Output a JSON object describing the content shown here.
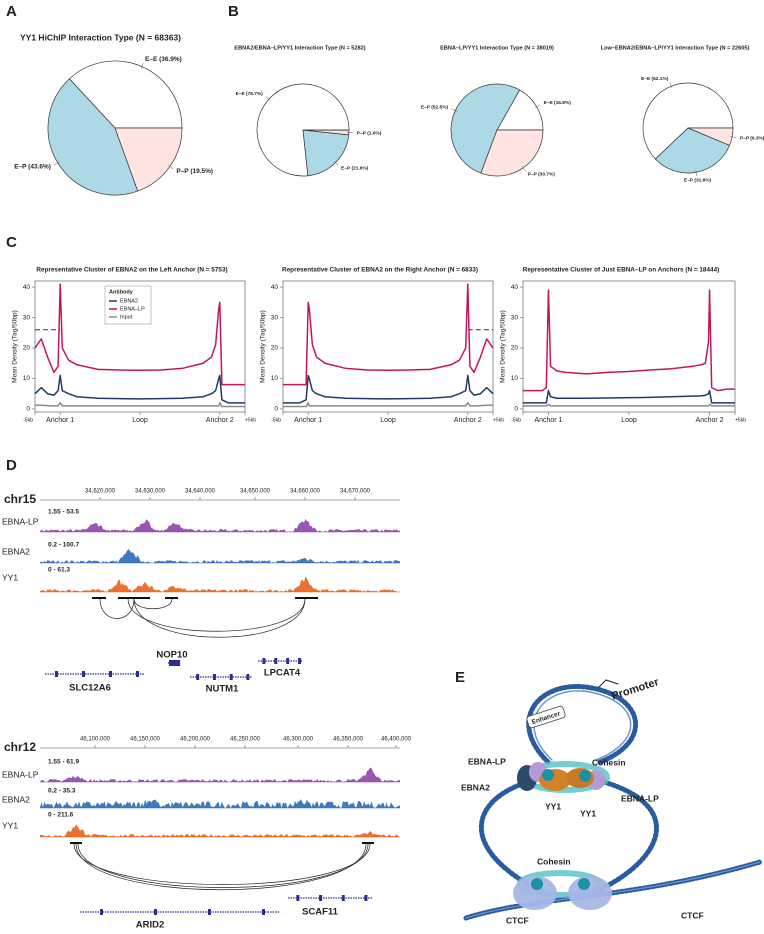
{
  "panels": [
    "A",
    "B",
    "C",
    "D",
    "E"
  ],
  "chart_data": [
    {
      "type": "pie",
      "title": "YY1 HiChIP Interaction Type (N = 68363)",
      "categories": [
        "E–E",
        "E–P",
        "P–P"
      ],
      "values": [
        36.9,
        43.6,
        19.5
      ],
      "value_labels": [
        "E–E (36.9%)",
        "E–P (43.6%)",
        "P–P (19.5%)"
      ],
      "colors": [
        "#ffffff",
        "#add8e6",
        "#ffe4e1"
      ]
    },
    {
      "type": "pie",
      "title": "EBNA2/EBNA–LP/YY1 Interaction Type (N = 5282)",
      "categories": [
        "E–E",
        "E–P",
        "P–P"
      ],
      "values": [
        76.7,
        21.6,
        1.6
      ],
      "value_labels": [
        "E–E (76.7%)",
        "E–P (21.6%)",
        "P–P (1.6%)"
      ],
      "colors": [
        "#ffffff",
        "#add8e6",
        "#ffe4e1"
      ]
    },
    {
      "type": "pie",
      "title": "EBNA–LP/YY1 Interaction Type (N = 38019)",
      "categories": [
        "E–E",
        "E–P",
        "P–P"
      ],
      "values": [
        16.8,
        52.5,
        30.7
      ],
      "value_labels": [
        "E–E (16.8%)",
        "E–P (52.5%)",
        "P–P (30.7%)"
      ],
      "colors": [
        "#ffffff",
        "#add8e6",
        "#ffe4e1"
      ]
    },
    {
      "type": "pie",
      "title": "Low–EBNA2/EBNA–LP/YY1 Interaction Type (N = 22605)",
      "categories": [
        "E–E",
        "E–P",
        "P–P"
      ],
      "values": [
        62.1,
        31.6,
        6.3
      ],
      "value_labels": [
        "E–E (62.1%)",
        "E–P (31.6%)",
        "P–P (6.3%)"
      ],
      "colors": [
        "#ffffff",
        "#add8e6",
        "#ffe4e1"
      ]
    },
    {
      "type": "line",
      "title": "Representative Cluster of EBNA2 on the Left Anchor (N = 5753)",
      "y_label": "Mean Density (Tag/50bp)",
      "x": [
        0,
        3,
        6,
        9,
        11,
        12,
        13,
        16,
        20,
        30,
        40,
        50,
        60,
        70,
        80,
        84,
        86,
        87.5,
        88,
        89,
        92,
        96,
        100
      ],
      "series": [
        {
          "name": "EBNA2",
          "color": "#1f3a68",
          "values": [
            5,
            7,
            5,
            4.5,
            6,
            11,
            6,
            5,
            4,
            3.5,
            3.4,
            3.3,
            3.4,
            3.5,
            4,
            5,
            6,
            10,
            11,
            3,
            2,
            2,
            2
          ]
        },
        {
          "name": "EBNA–LP",
          "color": "#c2185b",
          "values": [
            20,
            23,
            17,
            12,
            14,
            41,
            20,
            16,
            14.5,
            13,
            12.8,
            12.7,
            12.8,
            13.3,
            15,
            17,
            21,
            33,
            35,
            8,
            8,
            8,
            8
          ]
        },
        {
          "name": "Input",
          "color": "#8a8a8a",
          "values": [
            1.2,
            1.2,
            1.1,
            1,
            1,
            2,
            1,
            1,
            1,
            1,
            1,
            1,
            1,
            1,
            1,
            1,
            1,
            1,
            2,
            0.8,
            0.8,
            0.8,
            0.8
          ]
        }
      ],
      "legend": true,
      "legend_title": "Antibody",
      "reference_line": {
        "value": 26,
        "side": "left"
      },
      "xlim": [
        0,
        100
      ],
      "xticks": [
        {
          "value": 0,
          "label": "-5kb"
        },
        {
          "value": 12,
          "label": "Anchor 1"
        },
        {
          "value": 50,
          "label": "Loop"
        },
        {
          "value": 88,
          "label": "Anchor 2"
        },
        {
          "value": 100,
          "label": "+5kb"
        }
      ],
      "ylim": [
        -1,
        42
      ],
      "yticks": [
        0,
        10,
        20,
        30,
        40
      ]
    },
    {
      "type": "line",
      "title": "Representative Cluster of EBNA2 on the Right Anchor (N = 6833)",
      "y_label": "Mean Density (Tag/50bp)",
      "x": [
        0,
        4,
        8,
        11,
        12,
        12.5,
        14,
        16,
        20,
        30,
        40,
        50,
        60,
        70,
        80,
        84,
        87,
        88,
        89,
        91,
        94,
        97,
        100
      ],
      "series": [
        {
          "name": "EBNA2",
          "color": "#1f3a68",
          "values": [
            2,
            2,
            2,
            3,
            11,
            10,
            6,
            5,
            4,
            3.5,
            3.4,
            3.3,
            3.4,
            3.5,
            4,
            5,
            6,
            11,
            6,
            4.5,
            5,
            7,
            5
          ]
        },
        {
          "name": "EBNA–LP",
          "color": "#c2185b",
          "values": [
            8,
            8,
            8,
            8,
            35,
            33,
            21,
            17,
            15,
            13.3,
            12.8,
            12.7,
            12.8,
            13,
            14.5,
            16,
            20,
            41,
            14,
            12,
            17,
            23,
            20
          ]
        },
        {
          "name": "Input",
          "color": "#8a8a8a",
          "values": [
            0.8,
            0.8,
            0.8,
            0.8,
            2,
            1,
            1,
            1,
            1,
            1,
            1,
            1,
            1,
            1,
            1,
            1,
            1,
            2,
            1,
            1,
            1.1,
            1.2,
            1.2
          ]
        }
      ],
      "legend": false,
      "reference_line": {
        "value": 26,
        "side": "right"
      },
      "xlim": [
        0,
        100
      ],
      "xticks": [
        {
          "value": 0,
          "label": "-5kb"
        },
        {
          "value": 12,
          "label": "Anchor 1"
        },
        {
          "value": 50,
          "label": "Loop"
        },
        {
          "value": 88,
          "label": "Anchor 2"
        },
        {
          "value": 100,
          "label": "+5kb"
        }
      ],
      "ylim": [
        -1,
        42
      ],
      "yticks": [
        0,
        10,
        20,
        30,
        40
      ]
    },
    {
      "type": "line",
      "title": "Representative Cluster of Just EBNA–LP on Anchors (N = 18444)",
      "y_label": "Mean Density (Tag/50bp)",
      "x": [
        0,
        3,
        6,
        9,
        11,
        12,
        13,
        16,
        20,
        30,
        40,
        50,
        60,
        70,
        80,
        84,
        86,
        87.5,
        88,
        89,
        92,
        96,
        100
      ],
      "series": [
        {
          "name": "EBNA2",
          "color": "#1f3a68",
          "values": [
            2,
            2,
            2,
            2,
            2,
            6,
            4,
            3.5,
            3.5,
            3.5,
            3.6,
            3.7,
            3.8,
            4,
            4.2,
            4.3,
            4.5,
            5,
            6,
            2,
            2,
            2,
            2
          ]
        },
        {
          "name": "EBNA–LP",
          "color": "#c2185b",
          "values": [
            6,
            6,
            6,
            6,
            7,
            39,
            14,
            12.5,
            12,
            11.5,
            12,
            12.3,
            12.8,
            13.2,
            14,
            14.5,
            15,
            22,
            39,
            7,
            6,
            6.5,
            6.5
          ]
        },
        {
          "name": "Input",
          "color": "#8a8a8a",
          "values": [
            1,
            1,
            1,
            1,
            1,
            1.5,
            1,
            1,
            1,
            1,
            1,
            1,
            1,
            1,
            1,
            1,
            1,
            1,
            1.5,
            1,
            1,
            1,
            1
          ]
        }
      ],
      "legend": false,
      "xlim": [
        0,
        100
      ],
      "xticks": [
        {
          "value": 0,
          "label": "-5kb"
        },
        {
          "value": 12,
          "label": "Anchor 1"
        },
        {
          "value": 50,
          "label": "Loop"
        },
        {
          "value": 88,
          "label": "Anchor 2"
        },
        {
          "value": 100,
          "label": "+5kb"
        }
      ],
      "ylim": [
        -1,
        42
      ],
      "yticks": [
        0,
        10,
        20,
        30,
        40
      ]
    }
  ],
  "genome_tracks": [
    {
      "chrom": "chr15",
      "ticks": [
        "34,620,000",
        "34,630,000",
        "34,640,000",
        "34,650,000",
        "34,660,000",
        "34,670,000"
      ],
      "tracks": [
        {
          "name": "EBNA-LP",
          "range": "1.55 - 53.5",
          "color": "#8e44ad"
        },
        {
          "name": "EBNA2",
          "range": "0.2 - 100.7",
          "color": "#2a6bb5"
        },
        {
          "name": "YY1",
          "range": "0 - 61.3",
          "color": "#e8621b"
        }
      ],
      "genes": [
        "NOP10",
        "SLC12A6",
        "NUTM1",
        "LPCAT4"
      ]
    },
    {
      "chrom": "chr12",
      "ticks": [
        "46,100,000",
        "46,150,000",
        "46,200,000",
        "46,250,000",
        "46,300,000",
        "46,350,000",
        "46,400,000"
      ],
      "tracks": [
        {
          "name": "EBNA-LP",
          "range": "1.55 - 61.9",
          "color": "#8e44ad"
        },
        {
          "name": "EBNA2",
          "range": "0.2 - 35.3",
          "color": "#2a6bb5"
        },
        {
          "name": "YY1",
          "range": "0 - 211.6",
          "color": "#e8621b"
        }
      ],
      "genes": [
        "ARID2",
        "SCAF11"
      ]
    }
  ],
  "model": {
    "labels": [
      "Promoter",
      "Enhancer",
      "Cohesin",
      "EBNA-LP",
      "EBNA2",
      "YY1",
      "YY1",
      "EBNA-LP",
      "Cohesin",
      "CTCF",
      "CTCF"
    ]
  }
}
